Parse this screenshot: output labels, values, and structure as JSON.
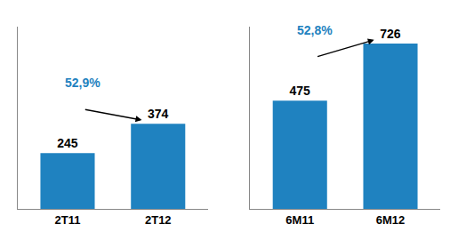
{
  "chart_data": [
    {
      "type": "bar",
      "categories": [
        "2T11",
        "2T12"
      ],
      "values": [
        245,
        374
      ],
      "color": "#1f82c0",
      "ylim": [
        0,
        800
      ],
      "data_labels": true,
      "tick_labels": "x",
      "grid": false,
      "annotations": [
        "52,9%"
      ]
    },
    {
      "type": "bar",
      "categories": [
        "6M11",
        "6M12"
      ],
      "values": [
        475,
        726
      ],
      "color": "#1f82c0",
      "ylim": [
        0,
        800
      ],
      "data_labels": true,
      "tick_labels": "x",
      "grid": false,
      "annotations": [
        "52,8%"
      ]
    }
  ]
}
